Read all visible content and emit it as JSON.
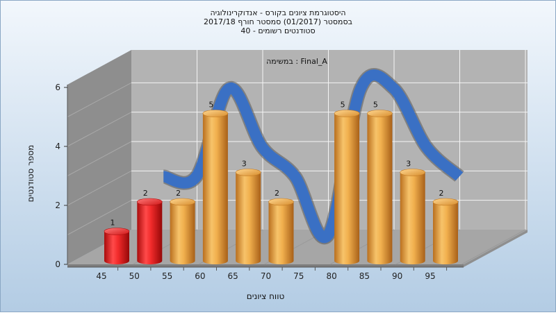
{
  "chart_data": {
    "type": "bar",
    "title": [
      "היסטוגרמת ציונים בקורס - אנדוקרינולוגיה",
      "בסמסטר  (01/2017)  סמסטר חורף 2017/18",
      "סטודנטים רשומים - 40"
    ],
    "annotation": "במשימה : Final_A",
    "xlabel": "טווח ציונים",
    "ylabel": "מספר סטודנטים",
    "categories": [
      "45",
      "50",
      "55",
      "60",
      "65",
      "70",
      "75",
      "80",
      "85",
      "90",
      "95"
    ],
    "values": [
      1,
      2,
      2,
      5,
      3,
      2,
      0,
      5,
      5,
      3,
      2
    ],
    "ylim": [
      0,
      6
    ],
    "yticks": [
      0,
      2,
      4,
      6
    ],
    "grid": true,
    "bar_colors": [
      "#e01818",
      "#e01818",
      "#e09a3a",
      "#e09a3a",
      "#e09a3a",
      "#e09a3a",
      "#e09a3a",
      "#e09a3a",
      "#e09a3a",
      "#e09a3a",
      "#e09a3a"
    ],
    "trend_line": true,
    "colors": {
      "background_top": "#f2f7fc",
      "background_bottom": "#b3cce4",
      "wall": "#b3b3b3",
      "left_wall": "#8e8e8e",
      "floor": "#a6a6a6",
      "grid": "#f4f4f4",
      "ribbon": "#3a70c4"
    }
  }
}
